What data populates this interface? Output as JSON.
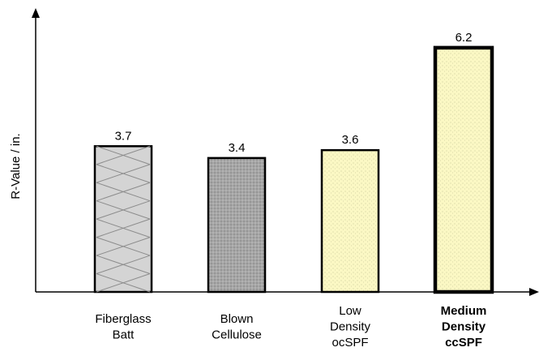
{
  "chart_data": {
    "type": "bar",
    "title": "",
    "xlabel": "",
    "ylabel": "R-Value / in.",
    "ylim": [
      0,
      7
    ],
    "grid": false,
    "legend": "none",
    "categories": [
      [
        "Fiberglass",
        "Batt"
      ],
      [
        "Blown",
        "Cellulose"
      ],
      [
        "Low",
        "Density",
        "ocSPF"
      ],
      [
        "Medium",
        "Density",
        "ccSPF"
      ]
    ],
    "values": [
      3.7,
      3.4,
      3.6,
      6.2
    ],
    "value_labels": [
      "3.7",
      "3.4",
      "3.6",
      "6.2"
    ],
    "bar_styles": [
      {
        "fill": "#d4d4d4",
        "pattern": "crosshatch",
        "emphasis": false
      },
      {
        "fill": "#a6a6a6",
        "pattern": "dots",
        "emphasis": false
      },
      {
        "fill": "#fbf8c4",
        "pattern": "dots",
        "emphasis": false
      },
      {
        "fill": "#fbf8c4",
        "pattern": "dots",
        "emphasis": true
      }
    ]
  }
}
